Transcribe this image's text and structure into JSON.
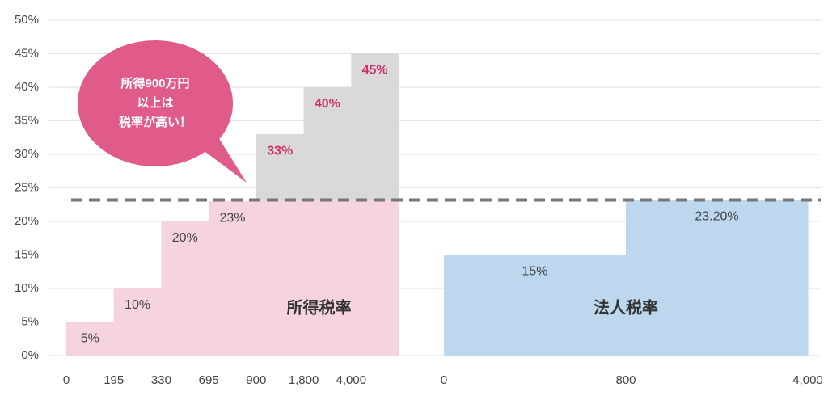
{
  "chart_data": {
    "type": "step",
    "ylim": [
      0,
      50
    ],
    "yticks": [
      {
        "value": 0,
        "label": "0%"
      },
      {
        "value": 5,
        "label": "5%"
      },
      {
        "value": 10,
        "label": "10%"
      },
      {
        "value": 15,
        "label": "15%"
      },
      {
        "value": 20,
        "label": "20%"
      },
      {
        "value": 25,
        "label": "25%"
      },
      {
        "value": 30,
        "label": "30%"
      },
      {
        "value": 35,
        "label": "35%"
      },
      {
        "value": 40,
        "label": "40%"
      },
      {
        "value": 45,
        "label": "45%"
      },
      {
        "value": 50,
        "label": "50%"
      }
    ],
    "grid": true,
    "above_color": "#d9d9d9",
    "above_label_color": "#d0306a",
    "series": [
      {
        "name": "所得税率",
        "color": "#f6d3e0",
        "edges": [
          "0",
          "195",
          "330",
          "695",
          "900",
          "1,800",
          "4,000"
        ],
        "values": [
          5,
          10,
          20,
          23,
          33,
          40,
          45
        ],
        "value_labels": [
          "5%",
          "10%",
          "20%",
          "23%",
          "33%",
          "40%",
          "45%"
        ]
      },
      {
        "name": "法人税率",
        "color": "#bdd7ee",
        "edges": [
          "0",
          "800",
          "4,000"
        ],
        "values": [
          15,
          23.2
        ],
        "value_labels": [
          "15%",
          "23.20%"
        ]
      }
    ],
    "annotation": [
      "所得900万円",
      "以上は",
      "税率が高い！"
    ]
  }
}
